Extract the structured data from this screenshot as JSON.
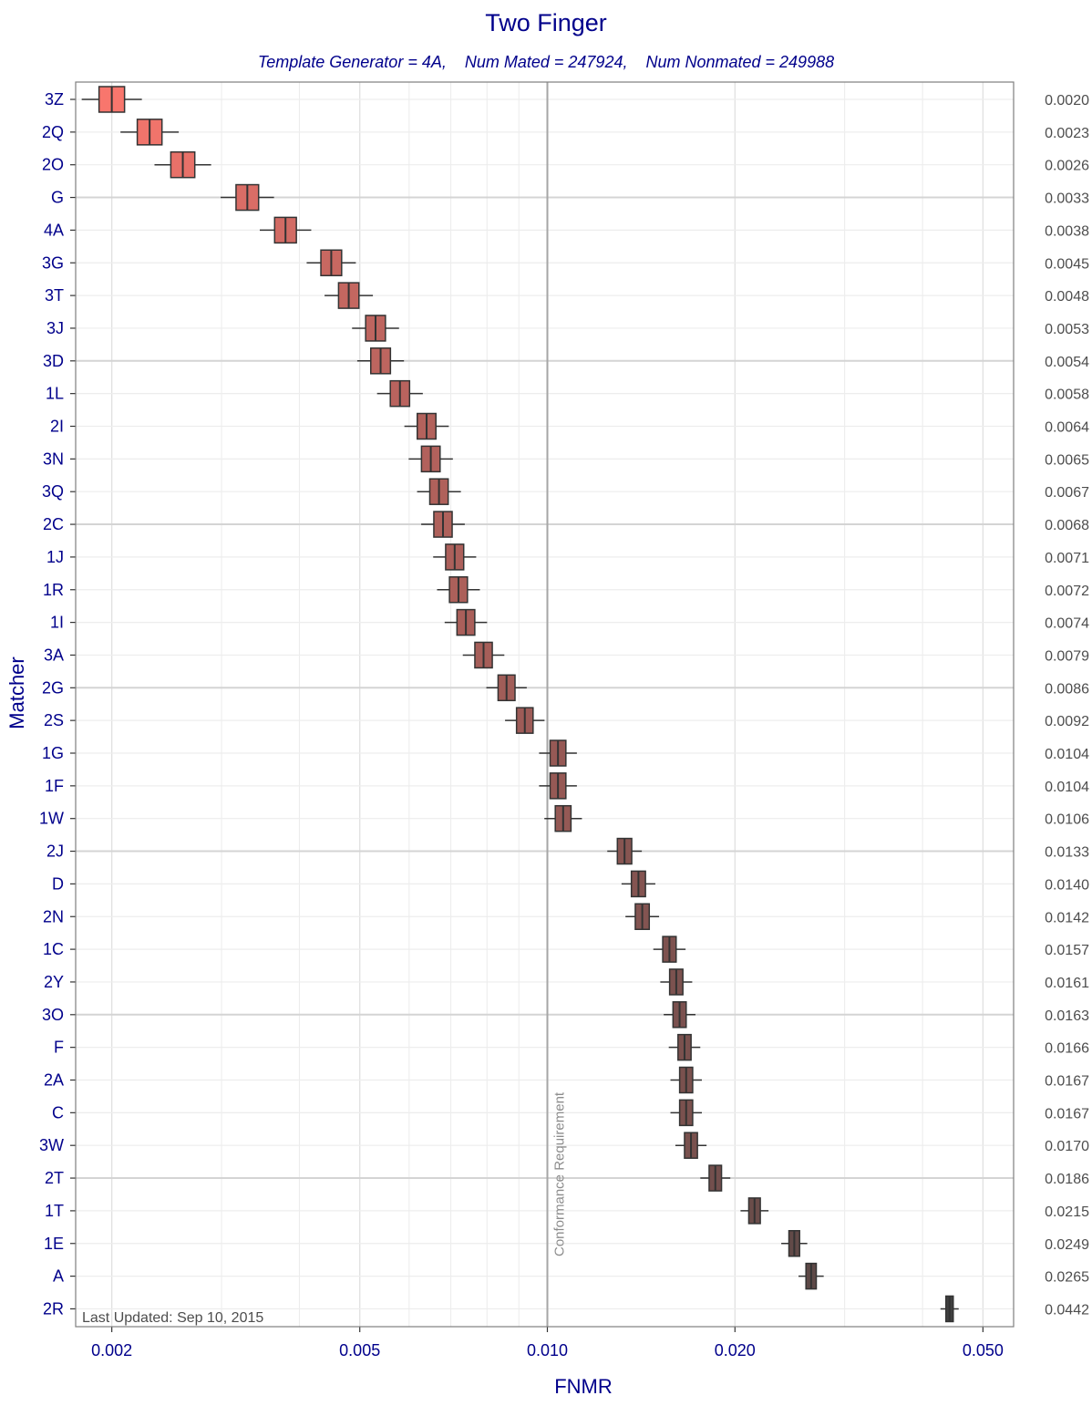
{
  "chart_data": {
    "type": "boxplot",
    "title": "Two Finger",
    "subtitle": "Template Generator = 4A,    Num Mated = 247924,    Num Nonmated = 249988",
    "xlabel": "FNMR",
    "ylabel": "Matcher",
    "x_scale": "log",
    "xlim": [
      0.00175,
      0.056
    ],
    "x_ticks": [
      0.002,
      0.005,
      0.01,
      0.02,
      0.05
    ],
    "x_tick_labels": [
      "0.002",
      "0.005",
      "0.010",
      "0.020",
      "0.050"
    ],
    "grid": true,
    "reference_line": {
      "value": 0.01,
      "label": "Conformance Requirement"
    },
    "annotation": "Last Updated: Sep 10, 2015",
    "fill_gradient": [
      "#F8766D",
      "#404040"
    ],
    "categories": [
      "3Z",
      "2Q",
      "2O",
      "G",
      "4A",
      "3G",
      "3T",
      "3J",
      "3D",
      "1L",
      "2I",
      "3N",
      "3Q",
      "2C",
      "1J",
      "1R",
      "1I",
      "3A",
      "2G",
      "2S",
      "1G",
      "1F",
      "1W",
      "2J",
      "D",
      "2N",
      "1C",
      "2Y",
      "3O",
      "F",
      "2A",
      "C",
      "3W",
      "2T",
      "1T",
      "1E",
      "A",
      "2R"
    ],
    "values": [
      0.002,
      0.0023,
      0.0026,
      0.0033,
      0.0038,
      0.0045,
      0.0048,
      0.0053,
      0.0054,
      0.0058,
      0.0064,
      0.0065,
      0.0067,
      0.0068,
      0.0071,
      0.0072,
      0.0074,
      0.0079,
      0.0086,
      0.0092,
      0.0104,
      0.0104,
      0.0106,
      0.0133,
      0.014,
      0.0142,
      0.0157,
      0.0161,
      0.0163,
      0.0166,
      0.0167,
      0.0167,
      0.017,
      0.0186,
      0.0215,
      0.0249,
      0.0265,
      0.0442
    ],
    "value_labels": [
      "0.0020",
      "0.0023",
      "0.0026",
      "0.0033",
      "0.0038",
      "0.0045",
      "0.0048",
      "0.0053",
      "0.0054",
      "0.0058",
      "0.0064",
      "0.0065",
      "0.0067",
      "0.0068",
      "0.0071",
      "0.0072",
      "0.0074",
      "0.0079",
      "0.0086",
      "0.0092",
      "0.0104",
      "0.0104",
      "0.0106",
      "0.0133",
      "0.0140",
      "0.0142",
      "0.0157",
      "0.0161",
      "0.0163",
      "0.0166",
      "0.0167",
      "0.0167",
      "0.0170",
      "0.0186",
      "0.0215",
      "0.0249",
      "0.0265",
      "0.0442"
    ]
  }
}
